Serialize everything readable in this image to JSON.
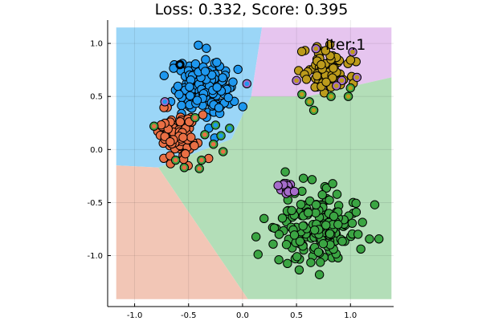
{
  "chart_data": {
    "type": "scatter",
    "title": "Loss: 0.332, Score: 0.395",
    "annotation": "iter:1",
    "xlabel": "",
    "ylabel": "",
    "xlim": [
      -1.25,
      1.4
    ],
    "ylim": [
      -1.48,
      1.22
    ],
    "grid": true,
    "legend": "none",
    "xticks": [
      {
        "value": -1.0,
        "label": "-1.0"
      },
      {
        "value": -0.5,
        "label": "-0.5"
      },
      {
        "value": 0.0,
        "label": "0.0"
      },
      {
        "value": 0.5,
        "label": "0.5"
      },
      {
        "value": 1.0,
        "label": "1.0"
      }
    ],
    "yticks": [
      {
        "value": 1.0,
        "label": "1.0"
      },
      {
        "value": 0.5,
        "label": "0.5"
      },
      {
        "value": 0.0,
        "label": "0.0"
      },
      {
        "value": -0.5,
        "label": "-0.5"
      },
      {
        "value": -1.0,
        "label": "-1.0"
      }
    ],
    "decision_regions": [
      {
        "class": 1,
        "color": "#9BD6F7",
        "polygon": [
          [
            -1.17,
            1.15
          ],
          [
            0.18,
            1.15
          ],
          [
            0.08,
            0.5
          ],
          [
            -0.1,
            0.1
          ],
          [
            -0.78,
            -0.17
          ],
          [
            -1.17,
            -0.15
          ]
        ]
      },
      {
        "class": 4,
        "color": "#E6C5EF",
        "polygon": [
          [
            0.18,
            1.15
          ],
          [
            1.38,
            1.15
          ],
          [
            1.38,
            0.68
          ],
          [
            0.6,
            0.5
          ],
          [
            0.08,
            0.5
          ]
        ]
      },
      {
        "class": 3,
        "color": "#B3DEB8",
        "polygon": [
          [
            0.08,
            0.5
          ],
          [
            0.6,
            0.5
          ],
          [
            1.38,
            0.68
          ],
          [
            1.38,
            -1.41
          ],
          [
            0.05,
            -1.41
          ],
          [
            -0.78,
            -0.17
          ],
          [
            -0.1,
            0.1
          ]
        ]
      },
      {
        "class": 2,
        "color": "#F2C6B6",
        "polygon": [
          [
            -1.17,
            -0.15
          ],
          [
            -0.78,
            -0.17
          ],
          [
            0.05,
            -1.41
          ],
          [
            -1.17,
            -1.41
          ]
        ]
      }
    ],
    "series": [
      {
        "class": 1,
        "fill": "#1E97EE",
        "center": [
          -0.38,
          0.58
        ],
        "spread": [
          0.13,
          0.13
        ],
        "count": 150
      },
      {
        "class": 2,
        "fill": "#E96F44",
        "center": [
          -0.58,
          0.14
        ],
        "spread": [
          0.11,
          0.1
        ],
        "count": 90
      },
      {
        "class": 3,
        "fill": "#3BA543",
        "center": [
          0.7,
          -0.75
        ],
        "spread": [
          0.19,
          0.17
        ],
        "count": 180
      },
      {
        "class": 4,
        "fill": "#A66CCB",
        "center": [
          0.42,
          -0.37
        ],
        "spread": [
          0.03,
          0.025
        ],
        "count": 14
      },
      {
        "class": 5,
        "fill": "#BC9B1C",
        "center": [
          0.78,
          0.75
        ],
        "spread": [
          0.11,
          0.1
        ],
        "count": 80
      }
    ],
    "misassigned_points": [
      {
        "x": -0.72,
        "y": 0.45,
        "fill": "#1E97EE",
        "ring": "#A66CCB"
      },
      {
        "x": 0.04,
        "y": 0.62,
        "fill": "#1E97EE",
        "ring": "#A66CCB"
      },
      {
        "x": -0.2,
        "y": 0.13,
        "fill": "#1E97EE",
        "ring": "#3BA543"
      },
      {
        "x": -0.12,
        "y": 0.2,
        "fill": "#1E97EE",
        "ring": "#3BA543"
      },
      {
        "x": -0.25,
        "y": 0.23,
        "fill": "#1E97EE",
        "ring": "#3BA543"
      },
      {
        "x": -0.58,
        "y": 0.8,
        "fill": "#1E97EE",
        "ring": "#000000"
      },
      {
        "x": -0.44,
        "y": 0.3,
        "fill": "#E96F44",
        "ring": "#3BA543"
      },
      {
        "x": -0.35,
        "y": 0.14,
        "fill": "#E96F44",
        "ring": "#3BA543"
      },
      {
        "x": -0.27,
        "y": 0.05,
        "fill": "#E96F44",
        "ring": "#3BA543"
      },
      {
        "x": -0.18,
        "y": -0.02,
        "fill": "#E96F44",
        "ring": "#3BA543"
      },
      {
        "x": -0.38,
        "y": -0.1,
        "fill": "#E96F44",
        "ring": "#3BA543"
      },
      {
        "x": -0.62,
        "y": -0.1,
        "fill": "#E96F44",
        "ring": "#3BA543"
      },
      {
        "x": -0.54,
        "y": -0.17,
        "fill": "#E96F44",
        "ring": "#3BA543"
      },
      {
        "x": -0.82,
        "y": 0.22,
        "fill": "#E96F44",
        "ring": "#3BA543"
      },
      {
        "x": -0.4,
        "y": -0.18,
        "fill": "#E96F44",
        "ring": "#3BA543"
      },
      {
        "x": 0.5,
        "y": 0.65,
        "fill": "#BC9B1C",
        "ring": "#A66CCB"
      },
      {
        "x": 0.68,
        "y": 0.95,
        "fill": "#BC9B1C",
        "ring": "#A66CCB"
      },
      {
        "x": 0.92,
        "y": 0.65,
        "fill": "#BC9B1C",
        "ring": "#A66CCB"
      },
      {
        "x": 1.06,
        "y": 0.68,
        "fill": "#BC9B1C",
        "ring": "#A66CCB"
      },
      {
        "x": 1.02,
        "y": 0.92,
        "fill": "#BC9B1C",
        "ring": "#A66CCB"
      },
      {
        "x": 0.87,
        "y": 0.6,
        "fill": "#BC9B1C",
        "ring": "#A66CCB"
      },
      {
        "x": 0.55,
        "y": 0.52,
        "fill": "#BC9B1C",
        "ring": "#3BA543"
      },
      {
        "x": 0.62,
        "y": 0.45,
        "fill": "#BC9B1C",
        "ring": "#3BA543"
      },
      {
        "x": 0.66,
        "y": 0.37,
        "fill": "#BC9B1C",
        "ring": "#3BA543"
      },
      {
        "x": 0.82,
        "y": 0.5,
        "fill": "#BC9B1C",
        "ring": "#3BA543"
      },
      {
        "x": 0.98,
        "y": 0.5,
        "fill": "#BC9B1C",
        "ring": "#3BA543"
      },
      {
        "x": 1.0,
        "y": 0.58,
        "fill": "#BC9B1C",
        "ring": "#3BA543"
      }
    ]
  }
}
